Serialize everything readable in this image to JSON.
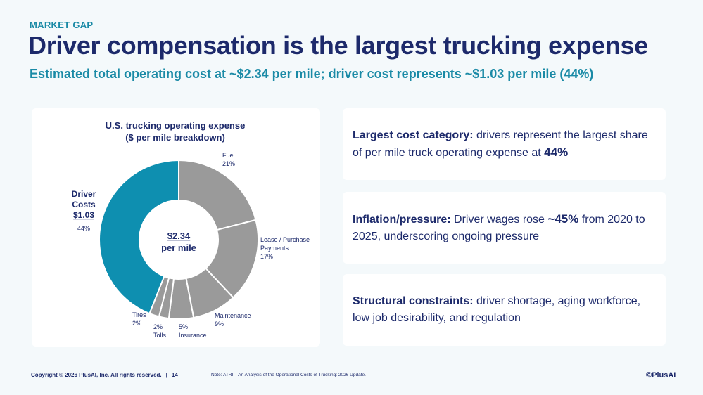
{
  "header": {
    "eyebrow": "MARKET GAP",
    "title": "Driver compensation is the largest trucking expense",
    "subtitle_prefix": "Estimated total operating cost at ",
    "subtitle_value1": "~$2.34",
    "subtitle_mid": " per mile; driver cost represents ",
    "subtitle_value2": "~$1.03",
    "subtitle_suffix": " per mile (44%)"
  },
  "chart_data": {
    "type": "pie",
    "donut": true,
    "title": "U.S. trucking operating expense",
    "subtitle": "($ per mile breakdown)",
    "center_value": "$2.34",
    "center_label": "per mile",
    "slices": [
      {
        "name": "Fuel",
        "value": 21,
        "pct_label": "21%",
        "color": "#9a9a9a"
      },
      {
        "name": "Lease / Purchase Payments",
        "value": 17,
        "pct_label": "17%",
        "color": "#9a9a9a"
      },
      {
        "name": "Maintenance",
        "value": 9,
        "pct_label": "9%",
        "color": "#9a9a9a"
      },
      {
        "name": "Insurance",
        "value": 5,
        "pct_label": "5%",
        "color": "#9a9a9a"
      },
      {
        "name": "Tolls",
        "value": 2,
        "pct_label": "2%",
        "color": "#9a9a9a"
      },
      {
        "name": "Tires",
        "value": 2,
        "pct_label": "2%",
        "color": "#9a9a9a"
      },
      {
        "name": "Driver Costs",
        "value": 44,
        "pct_label": "44%",
        "amount": "$1.03",
        "color": "#0e8fb0"
      }
    ]
  },
  "cards": [
    {
      "label": "Largest cost category:",
      "text_before": " drivers represent the largest share of per mile truck operating expense at ",
      "highlight": "44%",
      "text_after": ""
    },
    {
      "label": "Inflation/pressure:",
      "text_before": " Driver wages rose ",
      "highlight": "~45%",
      "text_after": " from 2020 to 2025, underscoring ongoing pressure"
    },
    {
      "label": "Structural constraints:",
      "text_before": " driver shortage, aging workforce, low job desirability, and regulation",
      "highlight": "",
      "text_after": ""
    }
  ],
  "footer": {
    "copyright": "Copyright © 2026 PlusAI, Inc. All rights reserved.",
    "separator": "|",
    "page_number": "14",
    "note": "Note: ATRI – An Analysis of the Operational Costs of Trucking: 2026 Update.",
    "logo": "PlusAI",
    "logo_mark": "©"
  }
}
